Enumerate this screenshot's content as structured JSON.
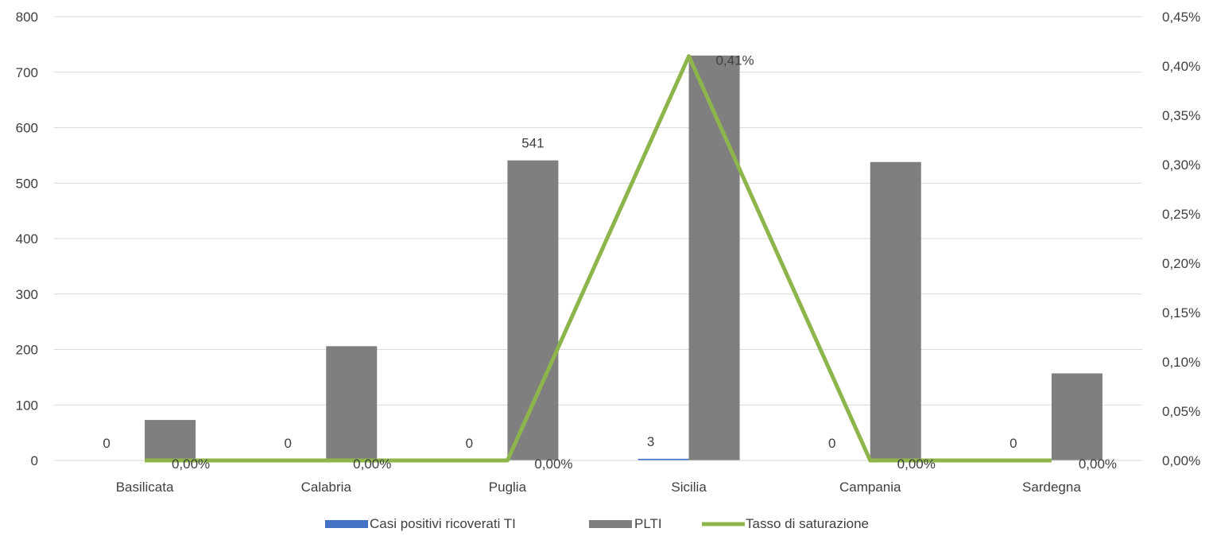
{
  "chart_data": {
    "type": "bar",
    "categories": [
      "Basilicata",
      "Calabria",
      "Puglia",
      "Sicilia",
      "Campania",
      "Sardegna"
    ],
    "series": [
      {
        "name": "Casi positivi ricoverati TI",
        "kind": "bar",
        "axis": "left",
        "color": "#4472C4",
        "values": [
          0,
          0,
          0,
          3,
          0,
          0
        ],
        "labels": [
          "0",
          "0",
          "0",
          "3",
          "0",
          "0"
        ]
      },
      {
        "name": "PLTI",
        "kind": "bar",
        "axis": "left",
        "color": "#7F7F7F",
        "values": [
          73,
          206,
          541,
          730,
          538,
          157
        ],
        "labels": [
          "",
          "",
          "541",
          "",
          "",
          ""
        ]
      },
      {
        "name": "Tasso di saturazione",
        "kind": "line",
        "axis": "right",
        "color": "#8DB54B",
        "values": [
          0,
          0,
          0,
          0.41,
          0,
          0
        ],
        "labels": [
          "0,00%",
          "0,00%",
          "0,00%",
          "0,41%",
          "0,00%",
          "0,00%"
        ]
      }
    ],
    "ylim": [
      0,
      800
    ],
    "y_ticks": [
      "0",
      "100",
      "200",
      "300",
      "400",
      "500",
      "600",
      "700",
      "800"
    ],
    "y2lim": [
      0,
      0.45
    ],
    "y2_ticks": [
      "0,00%",
      "0,05%",
      "0,10%",
      "0,15%",
      "0,20%",
      "0,25%",
      "0,30%",
      "0,35%",
      "0,40%",
      "0,45%"
    ],
    "grid": true,
    "legend": "bottom"
  }
}
